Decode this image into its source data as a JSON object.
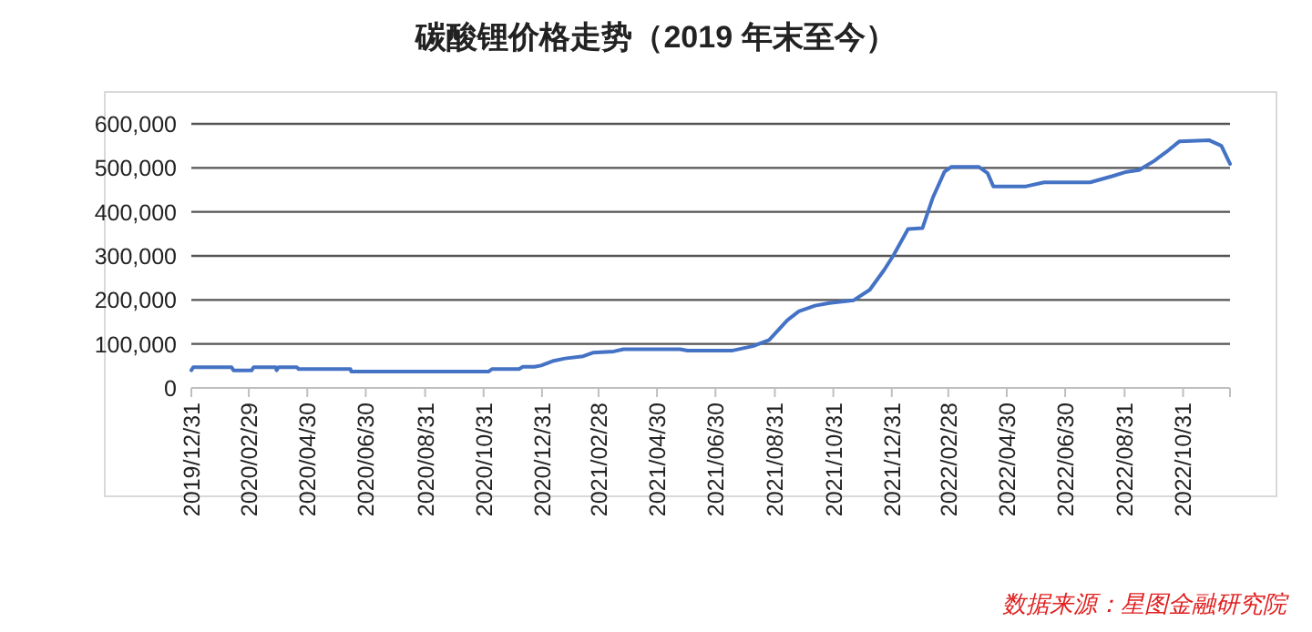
{
  "chart_data": {
    "type": "line",
    "title": "碳酸锂价格走势（2019 年末至今）",
    "annotations": [
      "数据来源：星图金融研究院"
    ],
    "x": [
      "2019-12-31",
      "2020-01-02",
      "2020-02-11",
      "2020-02-13",
      "2020-03-03",
      "2020-03-05",
      "2020-03-28",
      "2020-03-29",
      "2020-03-31",
      "2020-04-19",
      "2020-04-21",
      "2020-06-14",
      "2020-06-15",
      "2020-11-05",
      "2020-11-09",
      "2020-12-07",
      "2020-12-11",
      "2020-12-23",
      "2020-12-30",
      "2021-01-11",
      "2021-01-24",
      "2021-02-12",
      "2021-02-22",
      "2021-03-16",
      "2021-03-26",
      "2021-05-24",
      "2021-06-01",
      "2021-07-18",
      "2021-08-08",
      "2021-08-25",
      "2021-09-13",
      "2021-09-25",
      "2021-10-12",
      "2021-10-27",
      "2021-11-21",
      "2021-12-08",
      "2021-12-23",
      "2022-01-02",
      "2022-01-17",
      "2022-02-01",
      "2022-02-12",
      "2022-02-24",
      "2022-03-03",
      "2022-04-01",
      "2022-04-10",
      "2022-04-16",
      "2022-05-20",
      "2022-06-08",
      "2022-07-26",
      "2022-08-18",
      "2022-09-02",
      "2022-09-15",
      "2022-10-01",
      "2022-10-14",
      "2022-10-27",
      "2022-11-27",
      "2022-12-10",
      "2022-12-19"
    ],
    "series": [
      {
        "color": "#4472c4",
        "values": [
          40000,
          47000,
          47000,
          40000,
          40000,
          47000,
          47000,
          40000,
          47000,
          47000,
          43000,
          43000,
          37000,
          37000,
          43000,
          43000,
          48000,
          48000,
          51000,
          61000,
          67000,
          72000,
          80000,
          83000,
          88000,
          88000,
          85000,
          85000,
          95000,
          109000,
          154000,
          174000,
          187000,
          193000,
          199000,
          223000,
          268000,
          302000,
          361000,
          363000,
          433000,
          491000,
          502000,
          502000,
          488000,
          458000,
          458000,
          467000,
          467000,
          481000,
          491000,
          495000,
          516000,
          537000,
          560000,
          563000,
          550000,
          509000
        ]
      }
    ],
    "xlim": [
      "2019-12-31",
      "2022-12-19"
    ],
    "xticks": [
      {
        "value": "2019-12-31",
        "label": "2019/12/31"
      },
      {
        "value": "2020-02-29",
        "label": "2020/02/29"
      },
      {
        "value": "2020-04-30",
        "label": "2020/04/30"
      },
      {
        "value": "2020-06-30",
        "label": "2020/06/30"
      },
      {
        "value": "2020-08-31",
        "label": "2020/08/31"
      },
      {
        "value": "2020-10-31",
        "label": "2020/10/31"
      },
      {
        "value": "2020-12-31",
        "label": "2020/12/31"
      },
      {
        "value": "2021-02-28",
        "label": "2021/02/28"
      },
      {
        "value": "2021-04-30",
        "label": "2021/04/30"
      },
      {
        "value": "2021-06-30",
        "label": "2021/06/30"
      },
      {
        "value": "2021-08-31",
        "label": "2021/08/31"
      },
      {
        "value": "2021-10-31",
        "label": "2021/10/31"
      },
      {
        "value": "2021-12-31",
        "label": "2021/12/31"
      },
      {
        "value": "2022-02-28",
        "label": "2022/02/28"
      },
      {
        "value": "2022-04-30",
        "label": "2022/04/30"
      },
      {
        "value": "2022-06-30",
        "label": "2022/06/30"
      },
      {
        "value": "2022-08-31",
        "label": "2022/08/31"
      },
      {
        "value": "2022-10-31",
        "label": "2022/10/31"
      }
    ],
    "ylim": [
      0,
      600000
    ],
    "yticks": [
      0,
      {
        "value": 100000,
        "label": "100,000"
      },
      {
        "value": 200000,
        "label": "200,000"
      },
      {
        "value": 300000,
        "label": "300,000"
      },
      {
        "value": 400000,
        "label": "400,000"
      },
      {
        "value": 500000,
        "label": "500,000"
      },
      {
        "value": 600000,
        "label": "600,000"
      }
    ],
    "grid": "y",
    "line_style": "solid",
    "marker": "none"
  }
}
